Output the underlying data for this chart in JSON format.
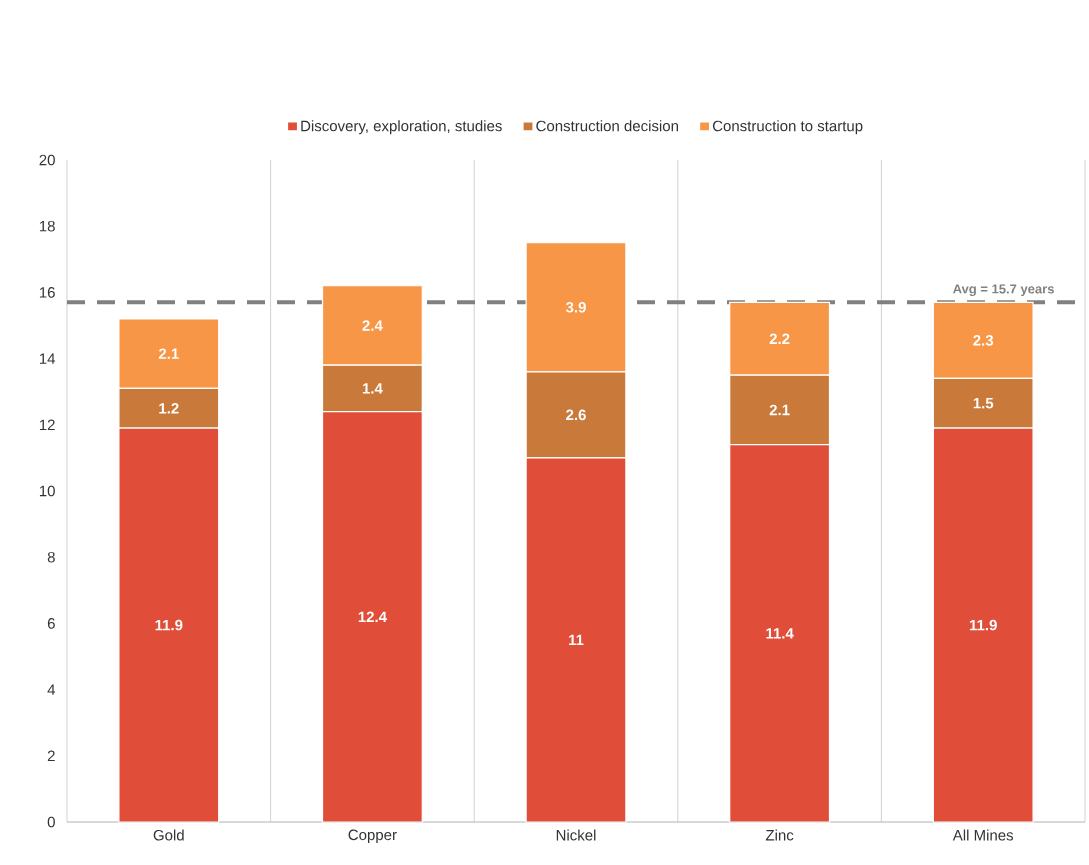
{
  "chart_data": {
    "type": "bar",
    "stacked": true,
    "categories": [
      "Gold",
      "Copper",
      "Nickel",
      "Zinc",
      "All Mines"
    ],
    "series": [
      {
        "name": "Discovery, exploration, studies",
        "color": "#e04e39",
        "values": [
          11.9,
          12.4,
          11,
          11.4,
          11.9
        ]
      },
      {
        "name": "Construction decision",
        "color": "#c97a3a",
        "values": [
          1.2,
          1.4,
          2.6,
          2.1,
          1.5
        ]
      },
      {
        "name": "Construction to startup",
        "color": "#f79646",
        "values": [
          2.1,
          2.4,
          3.9,
          2.2,
          2.3
        ]
      }
    ],
    "ylim": [
      0,
      20
    ],
    "yticks": [
      0,
      2,
      4,
      6,
      8,
      10,
      12,
      14,
      16,
      18,
      20
    ],
    "ref_lines": [
      {
        "axis": "y",
        "value": 15.7,
        "label": "Avg = 15.7 years",
        "color": "#808080",
        "line_style": "dashed"
      }
    ],
    "data_labels": true,
    "grid": "x",
    "legend": "top"
  }
}
